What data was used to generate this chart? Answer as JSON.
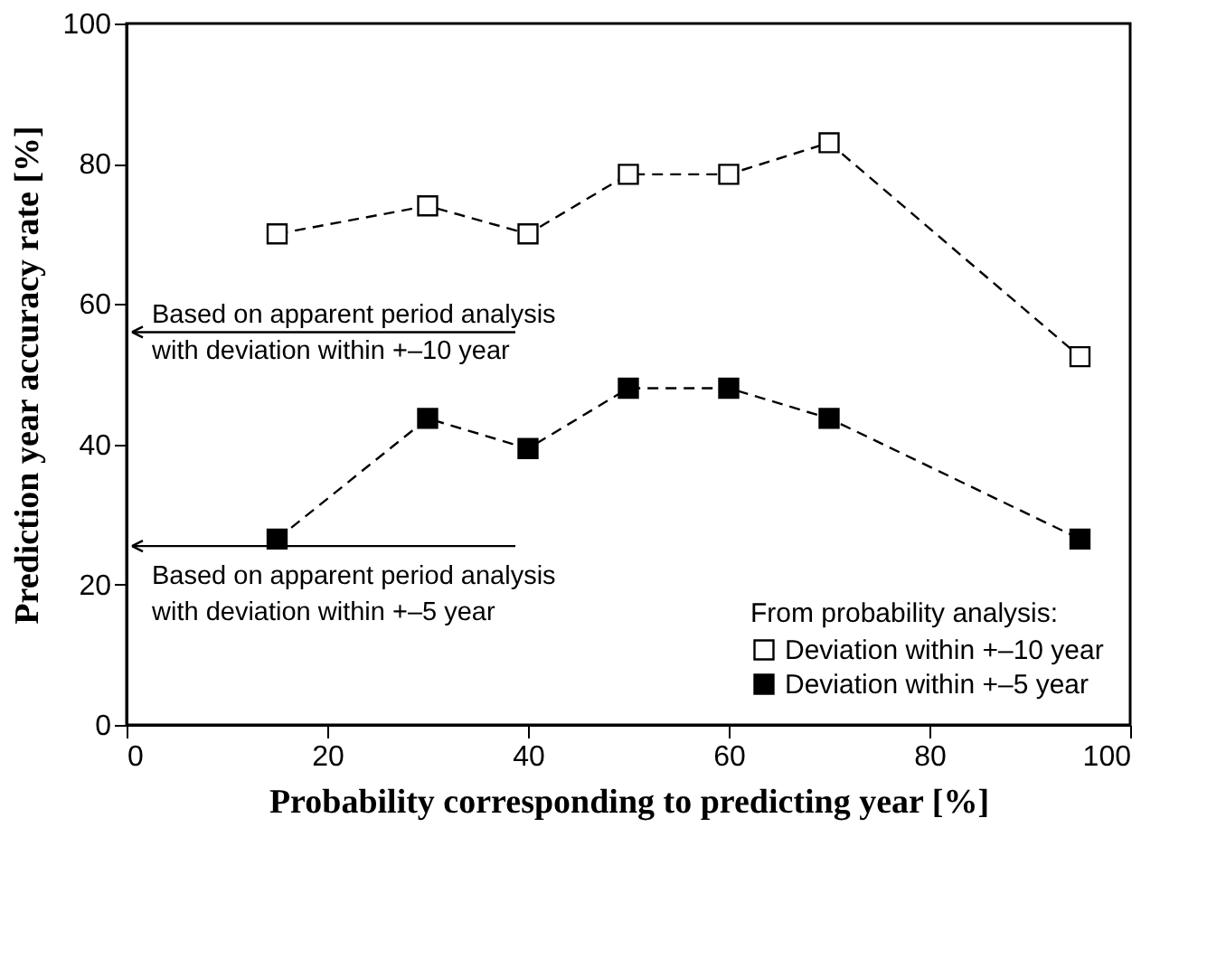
{
  "chart_data": {
    "type": "line",
    "xlabel": "Probability corresponding to predicting year [%]",
    "ylabel": "Prediction year accuracy rate [%]",
    "x": [
      15,
      30,
      40,
      50,
      60,
      70,
      95
    ],
    "series": [
      {
        "name": "Deviation within +–10 year",
        "color": "#ffffff",
        "values": [
          70,
          74,
          70,
          78.5,
          78.5,
          83,
          52.5
        ]
      },
      {
        "name": "Deviation within +–5 year",
        "color": "#000000",
        "values": [
          26.5,
          43.7,
          39.4,
          48,
          48,
          43.7,
          26.5
        ]
      }
    ],
    "legend_title": "From probability analysis:",
    "legend": "bottom right",
    "marker": "square",
    "line_style": "dashed",
    "grid": false,
    "xlim": [
      0,
      100
    ],
    "xticks": [
      0,
      20,
      40,
      60,
      80,
      100
    ],
    "ylim": [
      0,
      100
    ],
    "yticks": [
      0,
      20,
      40,
      60,
      80,
      100
    ],
    "ref_lines": [
      {
        "axis": "y",
        "value": 56,
        "label": "Based on apparent period analysis\nwith deviation within +–10 year"
      },
      {
        "axis": "y",
        "value": 25.5,
        "label": "Based on apparent period analysis\nwith deviation within +–5 year"
      }
    ]
  }
}
